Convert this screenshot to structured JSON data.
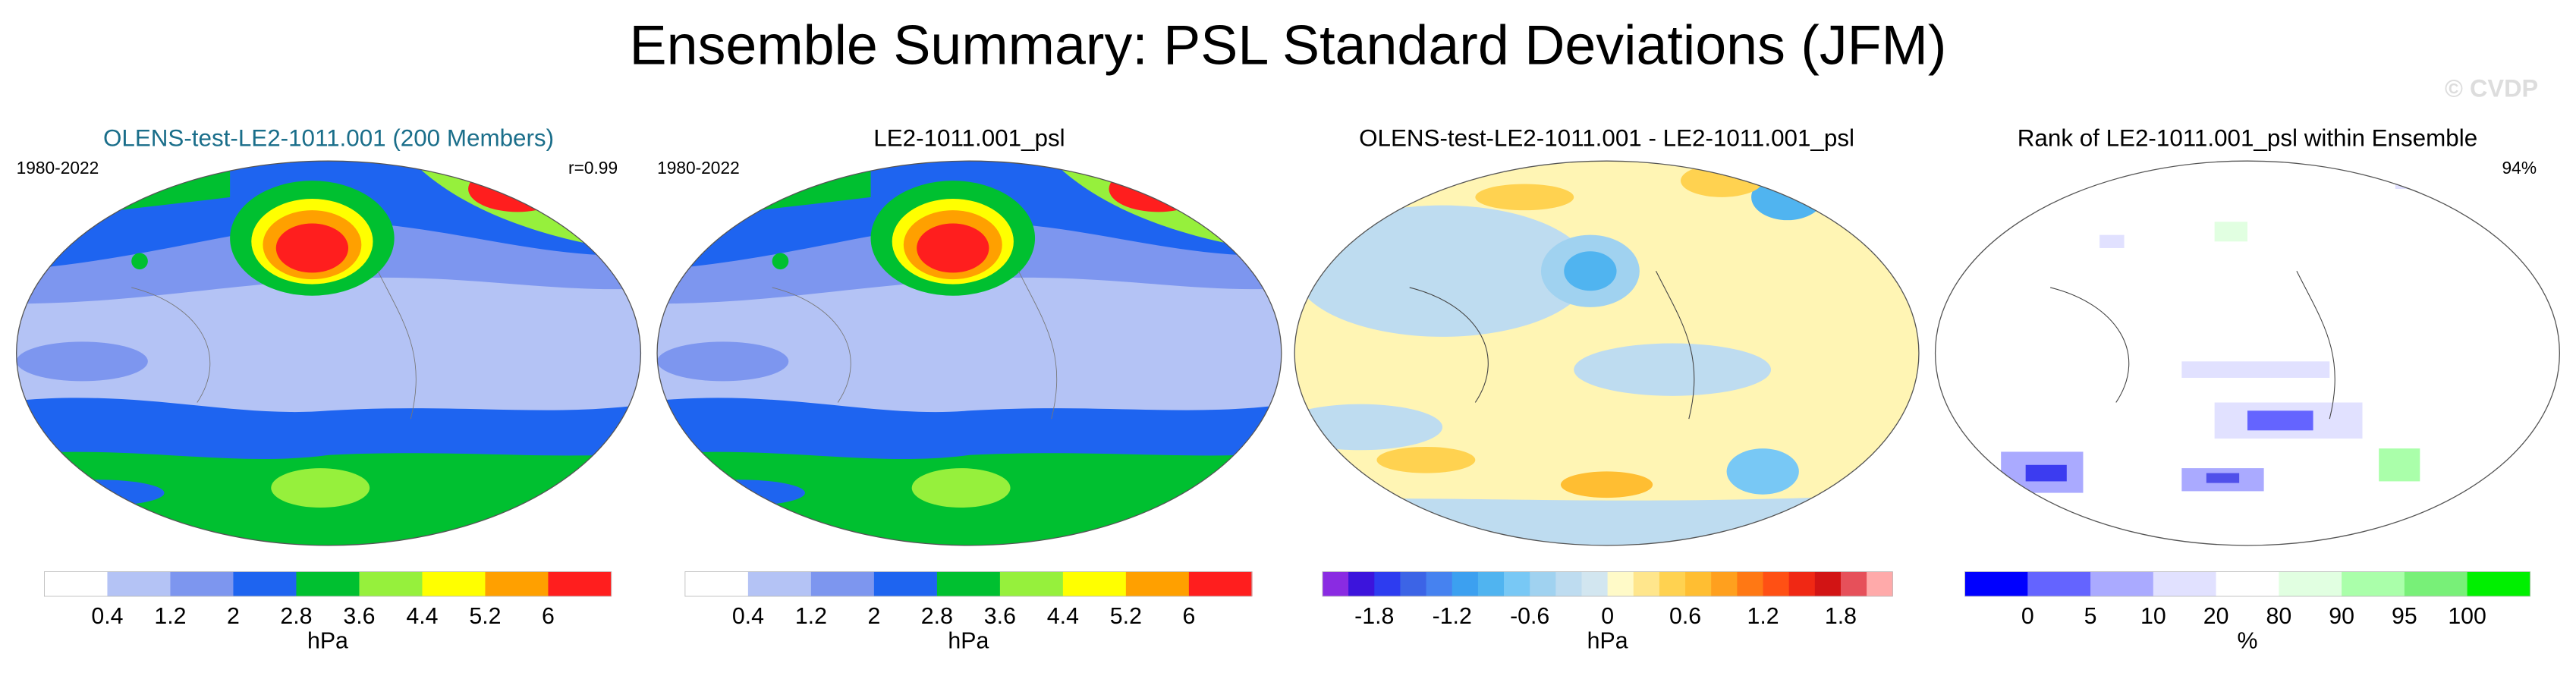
{
  "title": "Ensemble Summary: PSL Standard Deviations (JFM)",
  "watermark": "© CVDP",
  "panels": [
    {
      "title": "OLENS-test-LE2-1011.001 (200 Members)",
      "title_color": "#1a6e8a",
      "left_label": "1980-2022",
      "right_label": "r=0.99",
      "colorbar": {
        "label": "hPa",
        "ticks": [
          0.4,
          1.2,
          2,
          2.8,
          3.6,
          4.4,
          5.2,
          6
        ],
        "colors": [
          "#ffffff",
          "#b4c3f5",
          "#7d96ef",
          "#1e64f0",
          "#00c030",
          "#96f03c",
          "#ffff00",
          "#ffa000",
          "#ff1e1e"
        ]
      }
    },
    {
      "title": "LE2-1011.001_psl",
      "title_color": "#000000",
      "left_label": "1980-2022",
      "colorbar": {
        "label": "hPa",
        "ticks": [
          0.4,
          1.2,
          2,
          2.8,
          3.6,
          4.4,
          5.2,
          6
        ],
        "colors": [
          "#ffffff",
          "#b4c3f5",
          "#7d96ef",
          "#1e64f0",
          "#00c030",
          "#96f03c",
          "#ffff00",
          "#ffa000",
          "#ff1e1e"
        ]
      }
    },
    {
      "title": "OLENS-test-LE2-1011.001 - LE2-1011.001_psl",
      "title_color": "#000000",
      "colorbar": {
        "label": "hPa",
        "lim": [
          -2.2,
          2.2
        ],
        "ticks": [
          -1.8,
          -1.2,
          -0.6,
          0,
          0.6,
          1.2,
          1.8
        ],
        "colors": [
          "#8a2be2",
          "#3c14dc",
          "#2d3cf0",
          "#3c64e6",
          "#4682f0",
          "#3ca0f0",
          "#50b4f0",
          "#78c8f5",
          "#a0d2f0",
          "#bedcf0",
          "#d2e6f0",
          "#fffac8",
          "#ffe68c",
          "#ffd250",
          "#ffbe32",
          "#ffa01e",
          "#ff7814",
          "#ff5014",
          "#f02814",
          "#d21414",
          "#e6505a",
          "#ffaaaa"
        ]
      }
    },
    {
      "title": "Rank of LE2-1011.001_psl within Ensemble",
      "title_color": "#000000",
      "right_label": "94%",
      "colorbar": {
        "label": "%",
        "ticks": [
          0,
          5,
          10,
          20,
          80,
          90,
          95,
          100
        ],
        "colors": [
          "#0000ff",
          "#6464ff",
          "#aaaaff",
          "#e1e1ff",
          "#ffffff",
          "#e1ffe1",
          "#aaffaa",
          "#78f078",
          "#00f000"
        ]
      }
    }
  ]
}
